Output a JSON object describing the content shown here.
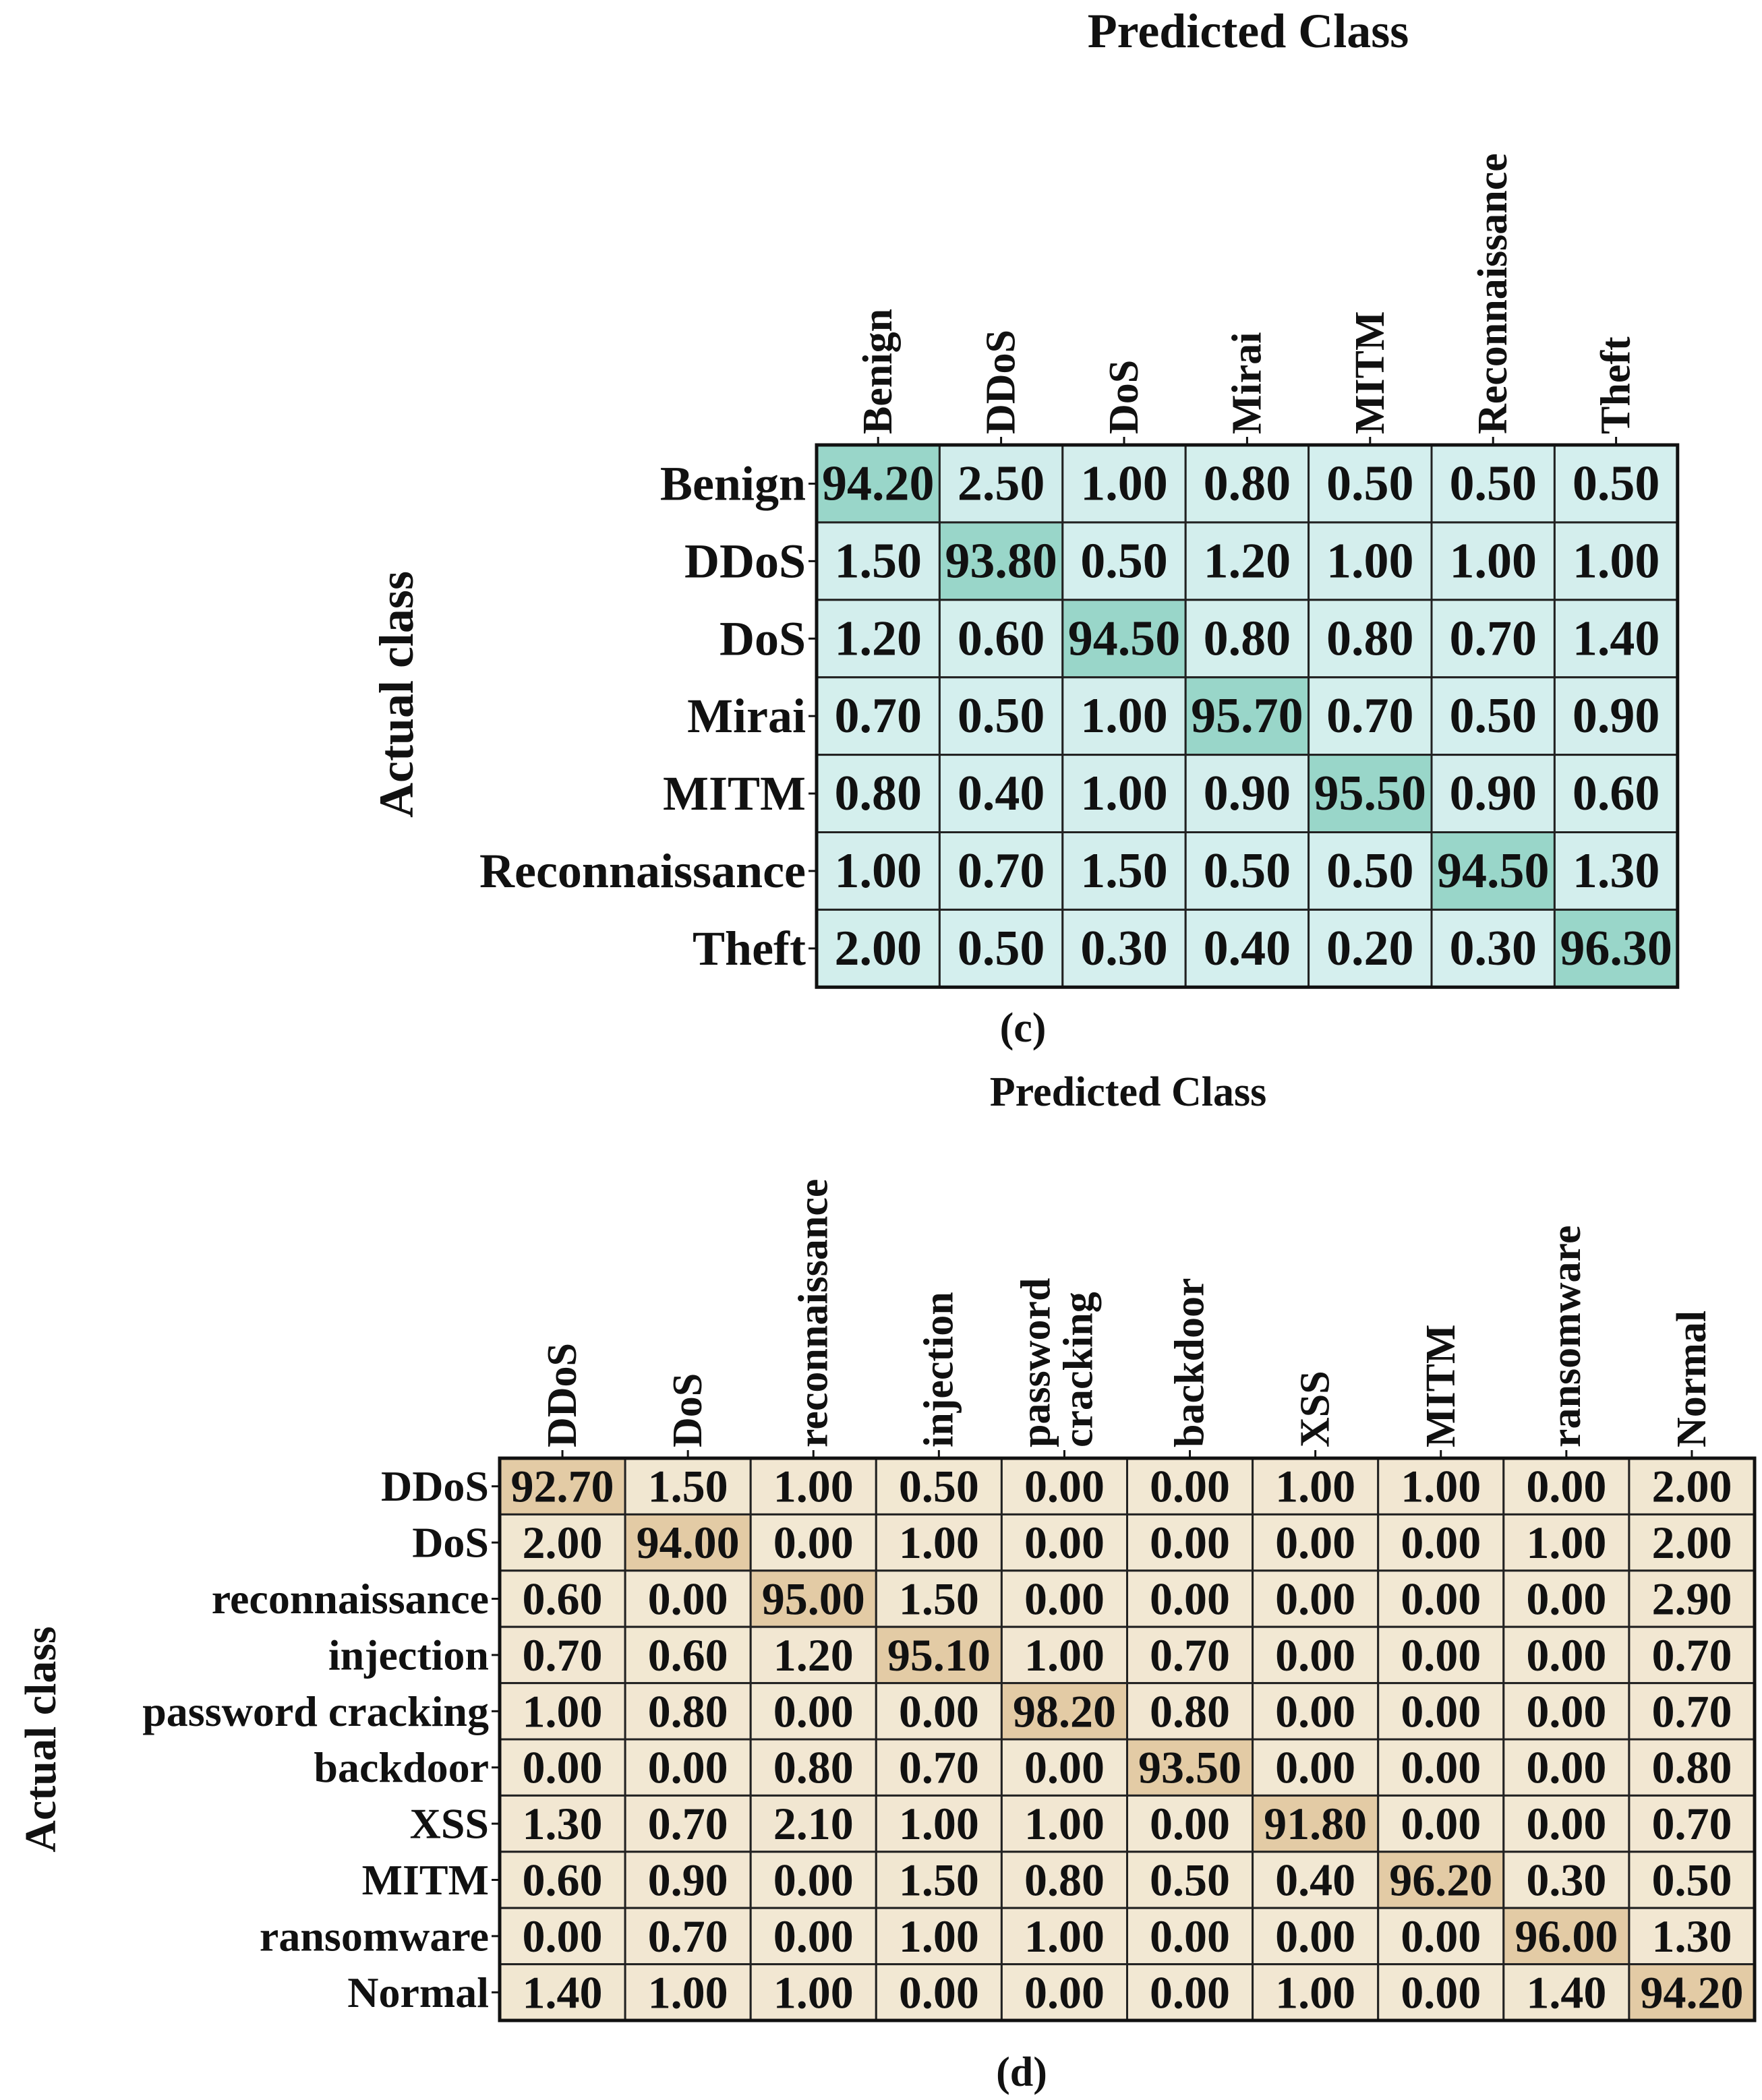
{
  "chart_data": [
    {
      "type": "heatmap",
      "panel_label": "(c)",
      "title": "Predicted Class",
      "ylabel": "Actual class",
      "columns": [
        "Benign",
        "DDoS",
        "DoS",
        "Mirai",
        "MITM",
        "Reconnaissance",
        "Theft"
      ],
      "rows": [
        "Benign",
        "DDoS",
        "DoS",
        "Mirai",
        "MITM",
        "Reconnaissance",
        "Theft"
      ],
      "values": [
        [
          "94.20",
          "2.50",
          "1.00",
          "0.80",
          "0.50",
          "0.50",
          "0.50"
        ],
        [
          "1.50",
          "93.80",
          "0.50",
          "1.20",
          "1.00",
          "1.00",
          "1.00"
        ],
        [
          "1.20",
          "0.60",
          "94.50",
          "0.80",
          "0.80",
          "0.70",
          "1.40"
        ],
        [
          "0.70",
          "0.50",
          "1.00",
          "95.70",
          "0.70",
          "0.50",
          "0.90"
        ],
        [
          "0.80",
          "0.40",
          "1.00",
          "0.90",
          "95.50",
          "0.90",
          "0.60"
        ],
        [
          "1.00",
          "0.70",
          "1.50",
          "0.50",
          "0.50",
          "94.50",
          "1.30"
        ],
        [
          "2.00",
          "0.50",
          "0.30",
          "0.40",
          "0.20",
          "0.30",
          "96.30"
        ]
      ],
      "colormap": {
        "low": "#d5efee",
        "high": "#99d6c9"
      }
    },
    {
      "type": "heatmap",
      "panel_label": "(d)",
      "title": "Predicted Class",
      "ylabel": "Actual class",
      "columns": [
        "DDoS",
        "DoS",
        "reconnaissance",
        "injection",
        "password cracking",
        "backdoor",
        "XSS",
        "MITM",
        "ransomware",
        "Normal"
      ],
      "rows": [
        "DDoS",
        "DoS",
        "reconnaissance",
        "injection",
        "password cracking",
        "backdoor",
        "XSS",
        "MITM",
        "ransomware",
        "Normal"
      ],
      "values": [
        [
          "92.70",
          "1.50",
          "1.00",
          "0.50",
          "0.00",
          "0.00",
          "1.00",
          "1.00",
          "0.00",
          "2.00"
        ],
        [
          "2.00",
          "94.00",
          "0.00",
          "1.00",
          "0.00",
          "0.00",
          "0.00",
          "0.00",
          "1.00",
          "2.00"
        ],
        [
          "0.60",
          "0.00",
          "95.00",
          "1.50",
          "0.00",
          "0.00",
          "0.00",
          "0.00",
          "0.00",
          "2.90"
        ],
        [
          "0.70",
          "0.60",
          "1.20",
          "95.10",
          "1.00",
          "0.70",
          "0.00",
          "0.00",
          "0.00",
          "0.70"
        ],
        [
          "1.00",
          "0.80",
          "0.00",
          "0.00",
          "98.20",
          "0.80",
          "0.00",
          "0.00",
          "0.00",
          "0.70"
        ],
        [
          "0.00",
          "0.00",
          "0.80",
          "0.70",
          "0.00",
          "93.50",
          "0.00",
          "0.00",
          "0.00",
          "0.80"
        ],
        [
          "1.30",
          "0.70",
          "2.10",
          "1.00",
          "1.00",
          "0.00",
          "91.80",
          "0.00",
          "0.00",
          "0.70"
        ],
        [
          "0.60",
          "0.90",
          "0.00",
          "1.50",
          "0.80",
          "0.50",
          "0.40",
          "96.20",
          "0.30",
          "0.50"
        ],
        [
          "0.00",
          "0.70",
          "0.00",
          "1.00",
          "1.00",
          "0.00",
          "0.00",
          "0.00",
          "96.00",
          "1.30"
        ],
        [
          "1.40",
          "1.00",
          "1.00",
          "0.00",
          "0.00",
          "0.00",
          "1.00",
          "0.00",
          "1.40",
          "94.20"
        ]
      ],
      "colormap": {
        "low": "#f2e8d3",
        "high": "#e3cba5"
      }
    }
  ]
}
